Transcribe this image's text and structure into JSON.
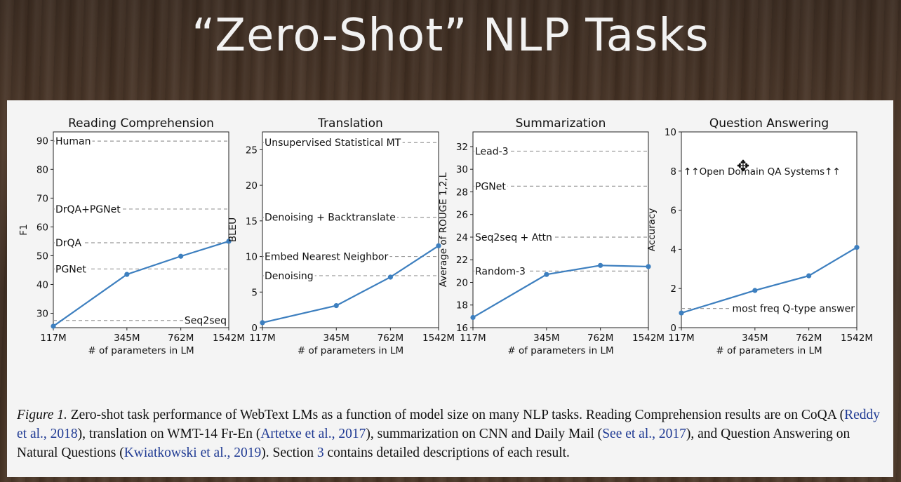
{
  "slide": {
    "title": "“Zero-Shot” NLP Tasks"
  },
  "chart_data": [
    {
      "type": "line",
      "title": "Reading Comprehension",
      "xlabel": "# of parameters in LM",
      "ylabel": "F1",
      "categories": [
        "117M",
        "345M",
        "762M",
        "1542M"
      ],
      "x": [
        117,
        345,
        762,
        1542
      ],
      "values": [
        25.5,
        43.5,
        49.8,
        55.0
      ],
      "ylim": [
        25,
        93
      ],
      "yticks": [
        30,
        40,
        50,
        60,
        70,
        80,
        90
      ],
      "xlim": [
        117,
        1542
      ],
      "baselines": [
        {
          "label": "Human",
          "value": 89.8,
          "label_pos": "left"
        },
        {
          "label": "DrQA+PGNet",
          "value": 66.2,
          "label_pos": "left"
        },
        {
          "label": "DrQA",
          "value": 54.5,
          "label_pos": "left"
        },
        {
          "label": "PGNet",
          "value": 45.4,
          "label_pos": "left"
        },
        {
          "label": "Seq2seq",
          "value": 27.5,
          "label_pos": "right"
        }
      ]
    },
    {
      "type": "line",
      "title": "Translation",
      "xlabel": "# of parameters in LM",
      "ylabel": "BLEU",
      "categories": [
        "117M",
        "345M",
        "762M",
        "1542M"
      ],
      "x": [
        117,
        345,
        762,
        1542
      ],
      "values": [
        0.7,
        3.1,
        7.1,
        11.5
      ],
      "ylim": [
        0,
        27.5
      ],
      "yticks": [
        0,
        5,
        10,
        15,
        20,
        25
      ],
      "xlim": [
        117,
        1542
      ],
      "baselines": [
        {
          "label": "Unsupervised Statistical MT",
          "value": 26.0,
          "label_pos": "left"
        },
        {
          "label": "Denoising + Backtranslate",
          "value": 15.5,
          "label_pos": "left"
        },
        {
          "label": "Embed Nearest Neighbor",
          "value": 10.0,
          "label_pos": "left"
        },
        {
          "label": "Denoising",
          "value": 7.3,
          "label_pos": "left"
        }
      ]
    },
    {
      "type": "line",
      "title": "Summarization",
      "xlabel": "# of parameters in LM",
      "ylabel": "Average of ROUGE 1,2,L",
      "categories": [
        "117M",
        "345M",
        "762M",
        "1542M"
      ],
      "x": [
        117,
        345,
        762,
        1542
      ],
      "values": [
        16.9,
        20.7,
        21.5,
        21.4
      ],
      "ylim": [
        16,
        33.3
      ],
      "yticks": [
        16,
        18,
        20,
        22,
        24,
        26,
        28,
        30,
        32
      ],
      "xlim": [
        117,
        1542
      ],
      "baselines": [
        {
          "label": "Lead-3",
          "value": 31.6,
          "label_pos": "left"
        },
        {
          "label": "PGNet",
          "value": 28.5,
          "label_pos": "left"
        },
        {
          "label": "Seq2seq + Attn",
          "value": 24.0,
          "label_pos": "left"
        },
        {
          "label": "Random-3",
          "value": 21.0,
          "label_pos": "left"
        }
      ]
    },
    {
      "type": "line",
      "title": "Question Answering",
      "xlabel": "# of parameters in LM",
      "ylabel": "Accuracy",
      "categories": [
        "117M",
        "345M",
        "762M",
        "1542M"
      ],
      "x": [
        117,
        345,
        762,
        1542
      ],
      "values": [
        0.75,
        1.9,
        2.65,
        4.1
      ],
      "ylim": [
        0,
        10
      ],
      "yticks": [
        0,
        2,
        4,
        6,
        8,
        10
      ],
      "xlim": [
        117,
        1542
      ],
      "baselines": [
        {
          "label": "most freq Q-type answer",
          "value": 0.98,
          "label_pos": "right"
        }
      ],
      "annotation": {
        "label": "↑↑Open Domain QA Systems↑↑",
        "value": 8.0
      }
    }
  ],
  "caption": {
    "fig_label": "Figure 1.",
    "text_1": " Zero-shot task performance of WebText LMs as a function of model size on many NLP tasks. Reading Comprehension results are on CoQA (",
    "cite_1": "Reddy et al., 2018",
    "text_2": "), translation on WMT-14 Fr-En (",
    "cite_2": "Artetxe et al., 2017",
    "text_3": "), summarization on CNN and Daily Mail (",
    "cite_3": "See et al., 2017",
    "text_4": "), and Question Answering on Natural Questions (",
    "cite_4": "Kwiatkowski et al., 2019",
    "text_5": "). Section ",
    "cite_5": "3",
    "text_6": " contains detailed descriptions of each result."
  },
  "colors": {
    "line": "#3d7fbf",
    "dashed": "#999999",
    "axis": "#222222"
  }
}
